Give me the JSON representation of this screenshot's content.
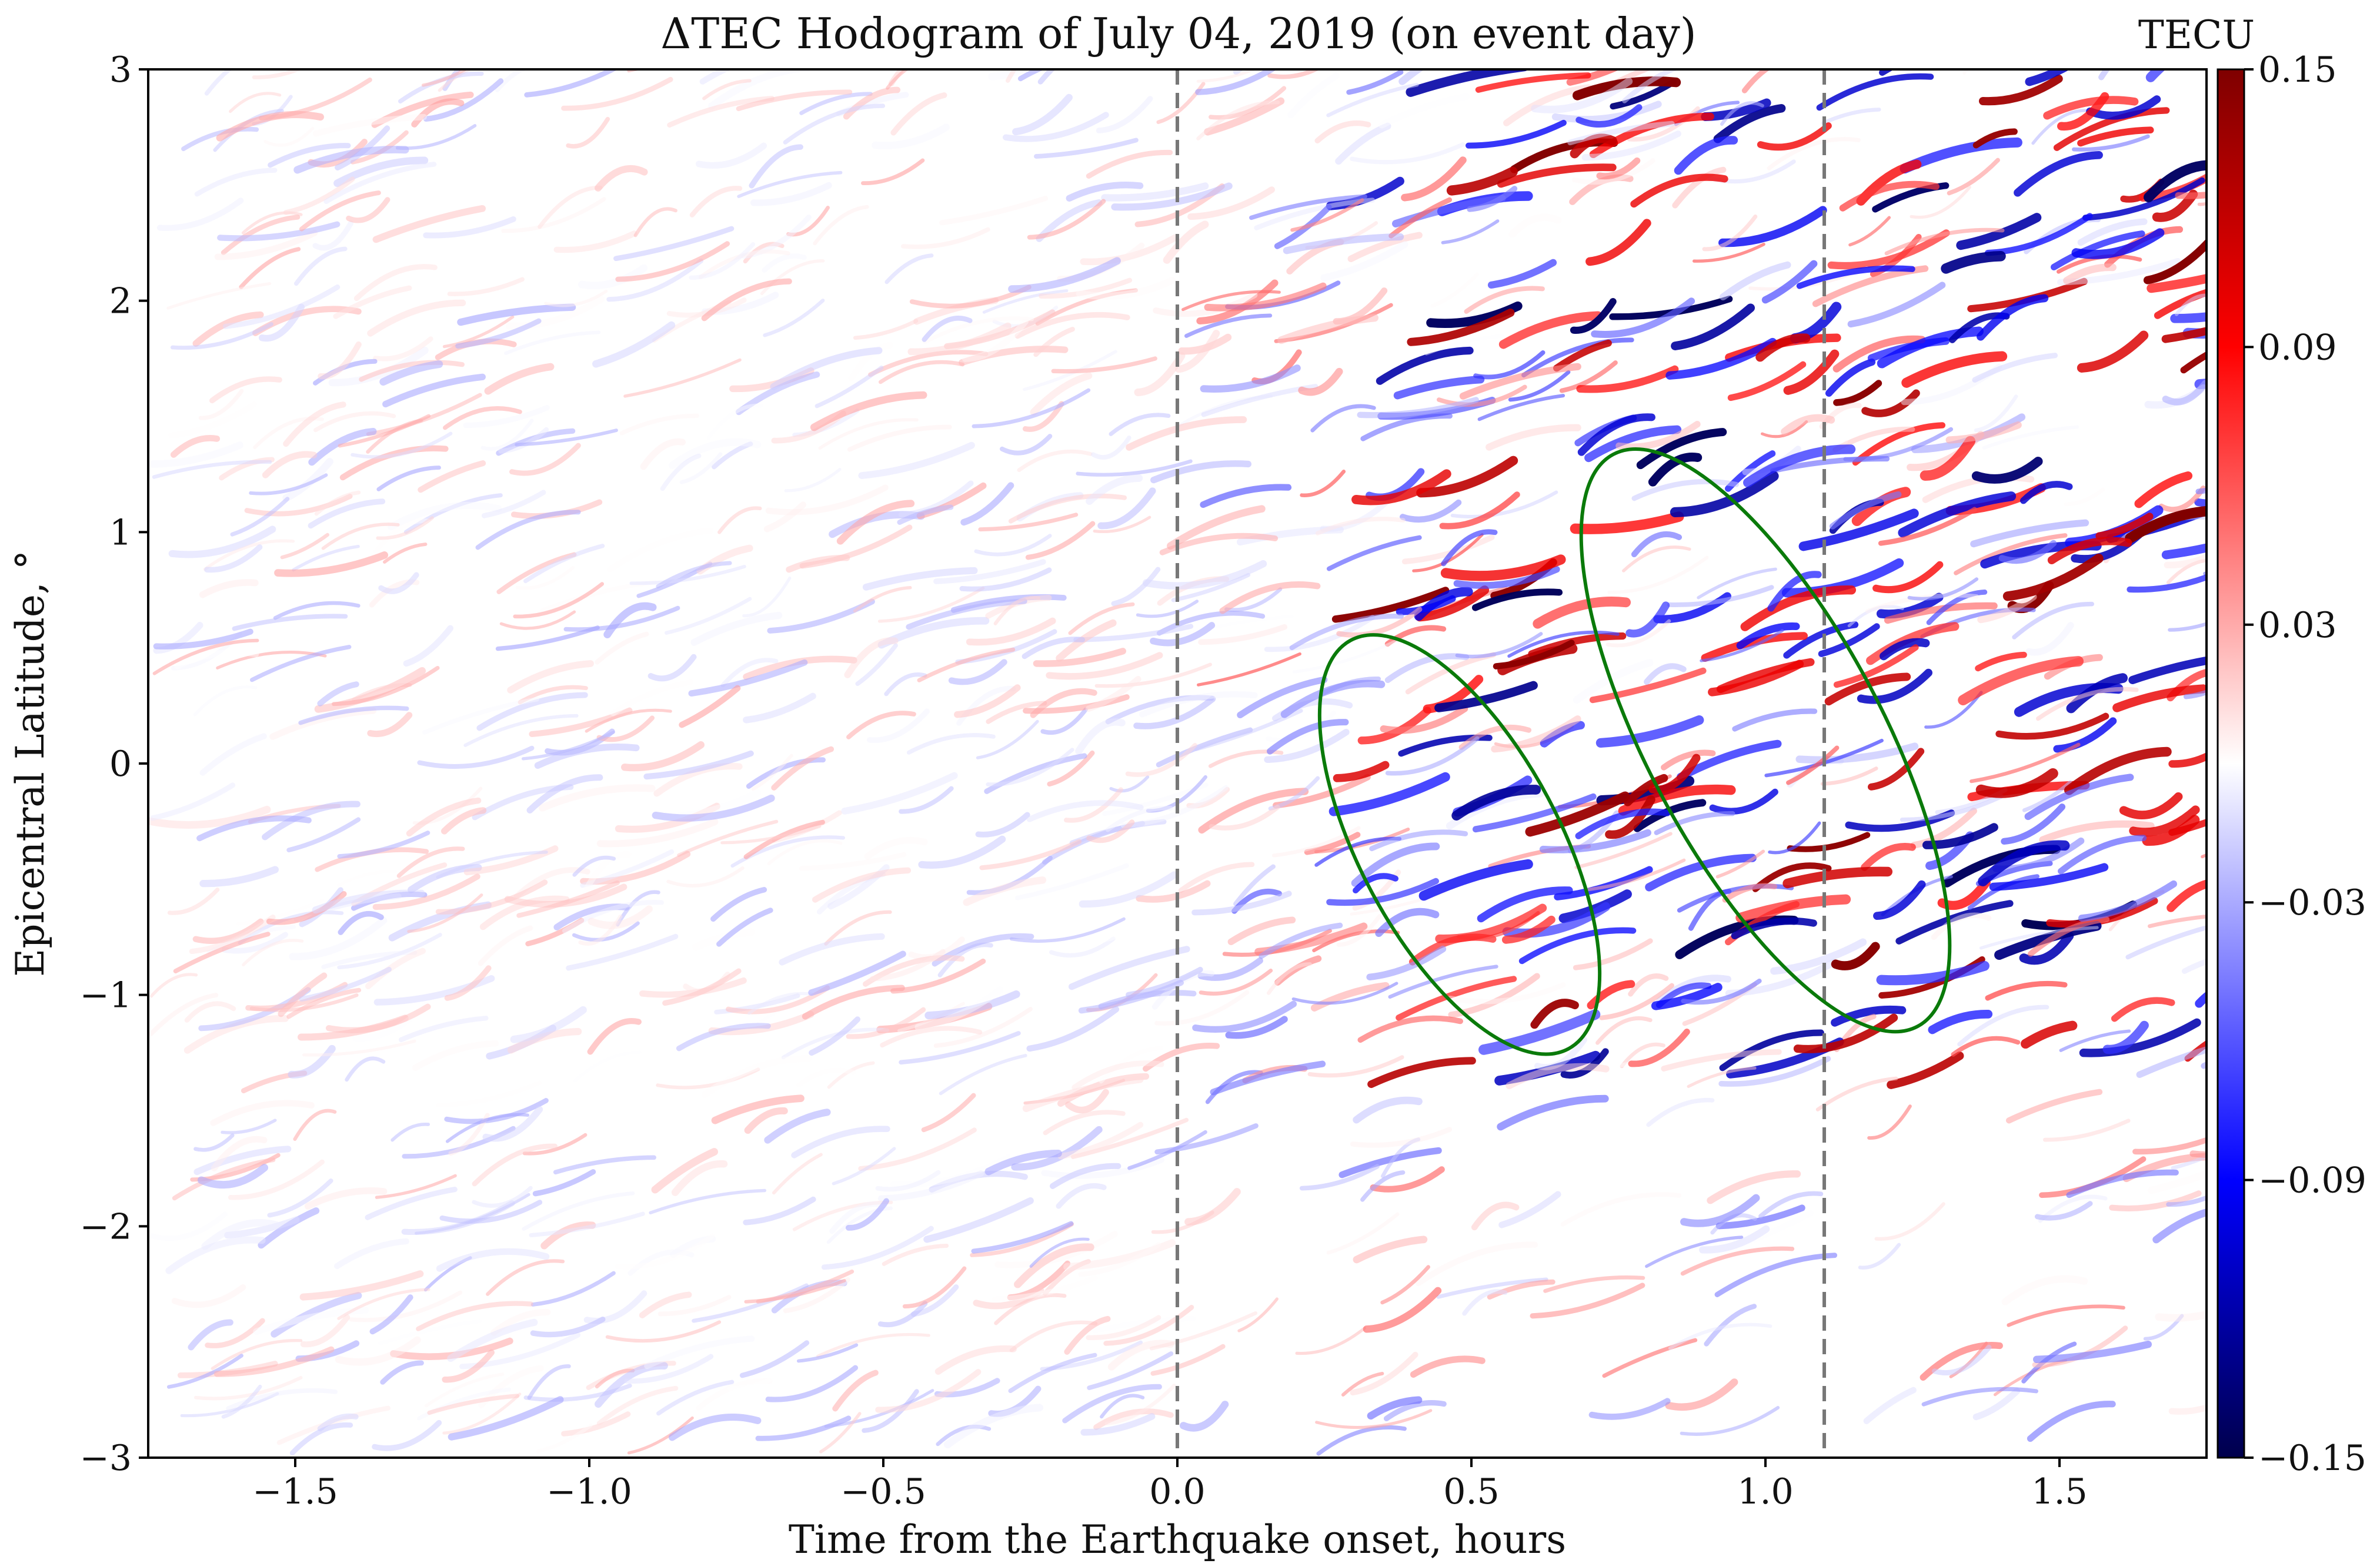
{
  "chart_data": {
    "type": "heatmap",
    "title": "ΔTEC  Hodogram of July 04, 2019 (on event day)",
    "xlabel": "Time from the Earthquake onset, hours",
    "ylabel": "Epicentral Latitude, °",
    "xlim": [
      -1.75,
      1.75
    ],
    "ylim": [
      -3,
      3
    ],
    "x_ticks": [
      -1.5,
      -1.0,
      -0.5,
      0.0,
      0.5,
      1.0,
      1.5
    ],
    "x_tick_labels": [
      "−1.5",
      "−1.0",
      "−0.5",
      "0.0",
      "0.5",
      "1.0",
      "1.5"
    ],
    "y_ticks": [
      -3,
      -2,
      -1,
      0,
      1,
      2,
      3
    ],
    "y_tick_labels": [
      "−3",
      "−2",
      "−1",
      "0",
      "1",
      "2",
      "3"
    ],
    "grid": false,
    "colorbar": {
      "label": "TECU",
      "min": -0.15,
      "max": 0.15,
      "colormap": "seismic",
      "ticks": [
        -0.15,
        -0.09,
        -0.03,
        0.03,
        0.09,
        0.15
      ],
      "tick_labels": [
        "−0.15",
        "−0.09",
        "−0.03",
        "0.03",
        "0.09",
        "0.15"
      ],
      "colors": [
        "#00004c",
        "#0000ff",
        "#ffffff",
        "#ff0000",
        "#7f0000"
      ]
    },
    "vertical_lines": [
      {
        "x": 0.0,
        "style": "dashed",
        "color": "#777777"
      },
      {
        "x": 1.1,
        "style": "dashed",
        "color": "#777777"
      }
    ],
    "annotations": [
      {
        "shape": "ellipse",
        "cx": 0.48,
        "cy": -0.35,
        "rx": 0.17,
        "ry": 1.0,
        "color": "#0a7a0a"
      },
      {
        "shape": "ellipse",
        "cx": 1.0,
        "cy": 0.1,
        "rx": 0.2,
        "ry": 1.4,
        "color": "#0a7a0a"
      }
    ]
  }
}
